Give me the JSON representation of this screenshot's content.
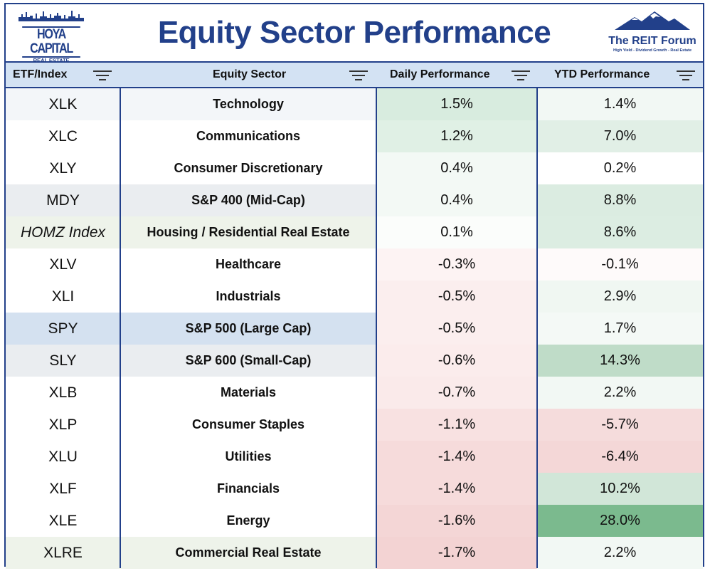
{
  "header": {
    "logo_left_name": "HOYA CAPITAL",
    "logo_left_sub": "REAL ESTATE",
    "title": "Equity Sector Performance",
    "logo_right_name": "The REIT Forum",
    "logo_right_tag": "High Yield - Dividend Growth - Real Estate"
  },
  "columns": [
    "ETF/Index",
    "Equity Sector",
    "Daily Performance",
    "YTD Performance"
  ],
  "rows": [
    {
      "etf": "XLK",
      "sector": "Technology",
      "daily": "1.5%",
      "ytd": "1.4%",
      "bg_etf": "#f3f6f9",
      "bg_daily": "#d8ecdf",
      "bg_ytd": "#f2f8f4",
      "italic": false
    },
    {
      "etf": "XLC",
      "sector": "Communications",
      "daily": "1.2%",
      "ytd": "7.0%",
      "bg_etf": "#ffffff",
      "bg_daily": "#e0f0e5",
      "bg_ytd": "#e1efe6",
      "italic": false
    },
    {
      "etf": "XLY",
      "sector": "Consumer Discretionary",
      "daily": "0.4%",
      "ytd": "0.2%",
      "bg_etf": "#ffffff",
      "bg_daily": "#f3f9f5",
      "bg_ytd": "#ffffff",
      "italic": false
    },
    {
      "etf": "MDY",
      "sector": "S&P 400 (Mid-Cap)",
      "daily": "0.4%",
      "ytd": "8.8%",
      "bg_etf": "#eaedf0",
      "bg_daily": "#f3f9f5",
      "bg_ytd": "#dbece1",
      "italic": false
    },
    {
      "etf": "HOMZ Index",
      "sector": "Housing / Residential Real Estate",
      "daily": "0.1%",
      "ytd": "8.6%",
      "bg_etf": "#eef3ea",
      "bg_daily": "#fbfdfb",
      "bg_ytd": "#dcede2",
      "italic": true
    },
    {
      "etf": "XLV",
      "sector": "Healthcare",
      "daily": "-0.3%",
      "ytd": "-0.1%",
      "bg_etf": "#ffffff",
      "bg_daily": "#fdf3f3",
      "bg_ytd": "#fefafa",
      "italic": false
    },
    {
      "etf": "XLI",
      "sector": "Industrials",
      "daily": "-0.5%",
      "ytd": "2.9%",
      "bg_etf": "#ffffff",
      "bg_daily": "#fbeeee",
      "bg_ytd": "#f0f7f2",
      "italic": false
    },
    {
      "etf": "SPY",
      "sector": "S&P 500 (Large Cap)",
      "daily": "-0.5%",
      "ytd": "1.7%",
      "bg_etf": "#d4e1f0",
      "bg_daily": "#fbeeee",
      "bg_ytd": "#f4f9f6",
      "italic": false
    },
    {
      "etf": "SLY",
      "sector": "S&P 600 (Small-Cap)",
      "daily": "-0.6%",
      "ytd": "14.3%",
      "bg_etf": "#eaedf0",
      "bg_daily": "#fbecec",
      "bg_ytd": "#bfdcc8",
      "italic": false
    },
    {
      "etf": "XLB",
      "sector": "Materials",
      "daily": "-0.7%",
      "ytd": "2.2%",
      "bg_etf": "#ffffff",
      "bg_daily": "#faeaea",
      "bg_ytd": "#f2f8f4",
      "italic": false
    },
    {
      "etf": "XLP",
      "sector": "Consumer Staples",
      "daily": "-1.1%",
      "ytd": "-5.7%",
      "bg_etf": "#ffffff",
      "bg_daily": "#f8e1e1",
      "bg_ytd": "#f5dcdc",
      "italic": false
    },
    {
      "etf": "XLU",
      "sector": "Utilities",
      "daily": "-1.4%",
      "ytd": "-6.4%",
      "bg_etf": "#ffffff",
      "bg_daily": "#f6dbdb",
      "bg_ytd": "#f4d7d7",
      "italic": false
    },
    {
      "etf": "XLF",
      "sector": "Financials",
      "daily": "-1.4%",
      "ytd": "10.2%",
      "bg_etf": "#ffffff",
      "bg_daily": "#f6dbdb",
      "bg_ytd": "#d1e6d8",
      "italic": false
    },
    {
      "etf": "XLE",
      "sector": "Energy",
      "daily": "-1.6%",
      "ytd": "28.0%",
      "bg_etf": "#ffffff",
      "bg_daily": "#f4d6d6",
      "bg_ytd": "#7bba8e",
      "italic": false
    },
    {
      "etf": "XLRE",
      "sector": "Commercial Real Estate",
      "daily": "-1.7%",
      "ytd": "2.2%",
      "bg_etf": "#eef3ea",
      "bg_daily": "#f3d3d3",
      "bg_ytd": "#f2f8f4",
      "italic": false
    }
  ]
}
